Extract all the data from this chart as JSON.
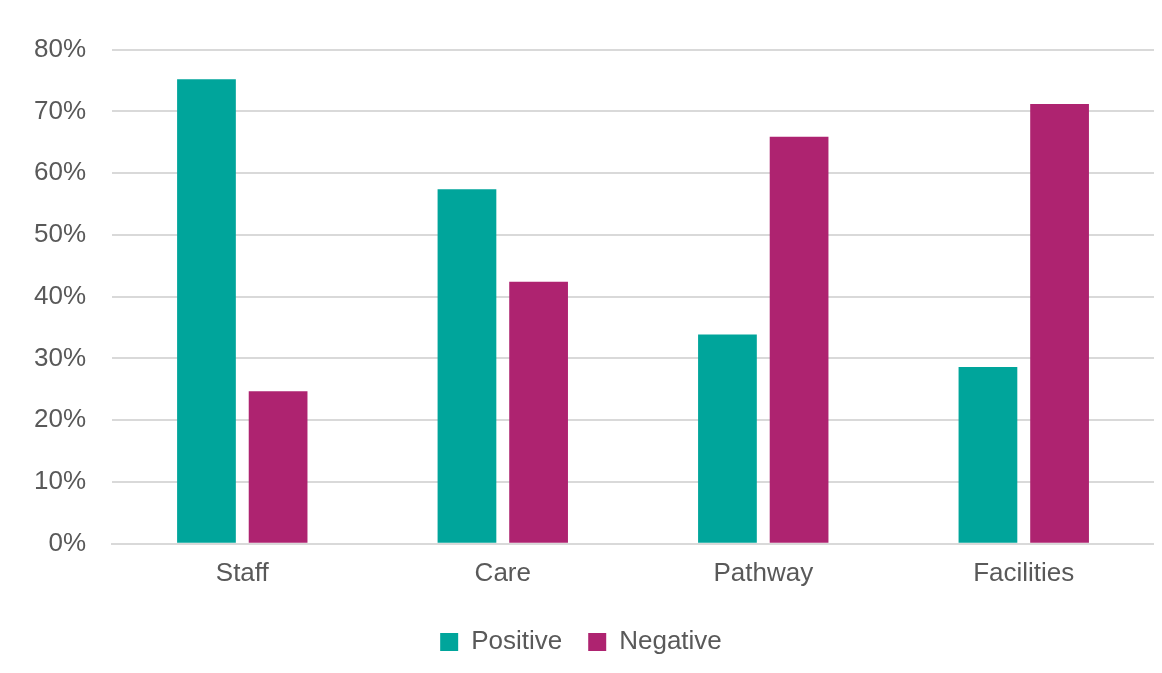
{
  "chart_data": {
    "type": "bar",
    "categories": [
      "Staff",
      "Care",
      "Pathway",
      "Facilities"
    ],
    "series": [
      {
        "name": "Positive",
        "color": "#00a59b",
        "values": [
          75.2,
          57.4,
          33.9,
          28.6
        ]
      },
      {
        "name": "Negative",
        "color": "#ae2370",
        "values": [
          24.7,
          42.4,
          65.9,
          71.2
        ]
      }
    ],
    "ylim": [
      0,
      80
    ],
    "yticks": [
      {
        "value": 0,
        "label": "0%"
      },
      {
        "value": 10,
        "label": "10%"
      },
      {
        "value": 20,
        "label": "20%"
      },
      {
        "value": 30,
        "label": "30%"
      },
      {
        "value": 40,
        "label": "40%"
      },
      {
        "value": 50,
        "label": "50%"
      },
      {
        "value": 60,
        "label": "60%"
      },
      {
        "value": 70,
        "label": "70%"
      },
      {
        "value": 80,
        "label": "80%"
      }
    ],
    "grid": "y",
    "legend": "bottom"
  }
}
